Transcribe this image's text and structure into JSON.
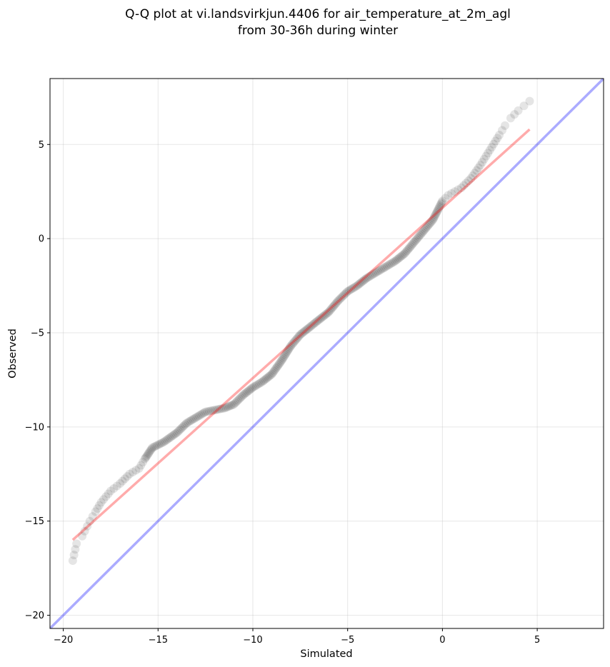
{
  "chart_data": {
    "type": "scatter",
    "title_line1": "Q-Q plot at vi.landsvirkjun.4406 for air_temperature_at_2m_agl",
    "title_line2": "from 30-36h during winter",
    "xlabel": "Simulated",
    "ylabel": "Observed",
    "xlim": [
      -20.7,
      8.5
    ],
    "ylim": [
      -20.7,
      8.5
    ],
    "xticks": [
      -20,
      -15,
      -10,
      -5,
      0,
      5
    ],
    "yticks": [
      -20,
      -15,
      -10,
      -5,
      0,
      5
    ],
    "xtick_labels": [
      "−20",
      "−15",
      "−10",
      "−5",
      "0",
      "5"
    ],
    "ytick_labels": [
      "−20",
      "−15",
      "−10",
      "−5",
      "0",
      "5"
    ],
    "grid": true,
    "point_color": "#000000",
    "fit_color": "#ff0000",
    "identity_color": "#0000ff",
    "quantile_curve": [
      [
        -19.5,
        -17.1
      ],
      [
        -19.3,
        -16.2
      ],
      [
        -19.0,
        -15.8
      ],
      [
        -18.6,
        -15.0
      ],
      [
        -18.3,
        -14.5
      ],
      [
        -18.0,
        -14.0
      ],
      [
        -17.5,
        -13.4
      ],
      [
        -17.0,
        -13.0
      ],
      [
        -16.5,
        -12.5
      ],
      [
        -16.0,
        -12.2
      ],
      [
        -15.7,
        -11.7
      ],
      [
        -15.3,
        -11.1
      ],
      [
        -14.7,
        -10.8
      ],
      [
        -14.0,
        -10.3
      ],
      [
        -13.5,
        -9.8
      ],
      [
        -13.0,
        -9.5
      ],
      [
        -12.5,
        -9.2
      ],
      [
        -12.0,
        -9.1
      ],
      [
        -11.5,
        -9.0
      ],
      [
        -11.0,
        -8.8
      ],
      [
        -10.5,
        -8.3
      ],
      [
        -10.0,
        -7.9
      ],
      [
        -9.5,
        -7.6
      ],
      [
        -9.0,
        -7.2
      ],
      [
        -8.5,
        -6.5
      ],
      [
        -8.0,
        -5.7
      ],
      [
        -7.5,
        -5.1
      ],
      [
        -7.0,
        -4.7
      ],
      [
        -6.5,
        -4.3
      ],
      [
        -6.0,
        -3.9
      ],
      [
        -5.5,
        -3.3
      ],
      [
        -5.0,
        -2.8
      ],
      [
        -4.5,
        -2.5
      ],
      [
        -4.0,
        -2.1
      ],
      [
        -3.5,
        -1.8
      ],
      [
        -3.0,
        -1.5
      ],
      [
        -2.5,
        -1.2
      ],
      [
        -2.0,
        -0.8
      ],
      [
        -1.5,
        -0.2
      ],
      [
        -1.0,
        0.4
      ],
      [
        -0.5,
        1.0
      ],
      [
        0.0,
        2.0
      ],
      [
        0.3,
        2.3
      ],
      [
        1.0,
        2.7
      ],
      [
        1.5,
        3.2
      ],
      [
        2.0,
        3.9
      ],
      [
        2.5,
        4.7
      ],
      [
        3.0,
        5.5
      ],
      [
        3.3,
        6.0
      ],
      [
        3.6,
        6.4
      ],
      [
        4.0,
        6.8
      ],
      [
        4.6,
        7.3
      ]
    ],
    "fit_line": {
      "x": [
        -19.5,
        4.6
      ],
      "y": [
        -16.0,
        5.8
      ]
    }
  }
}
